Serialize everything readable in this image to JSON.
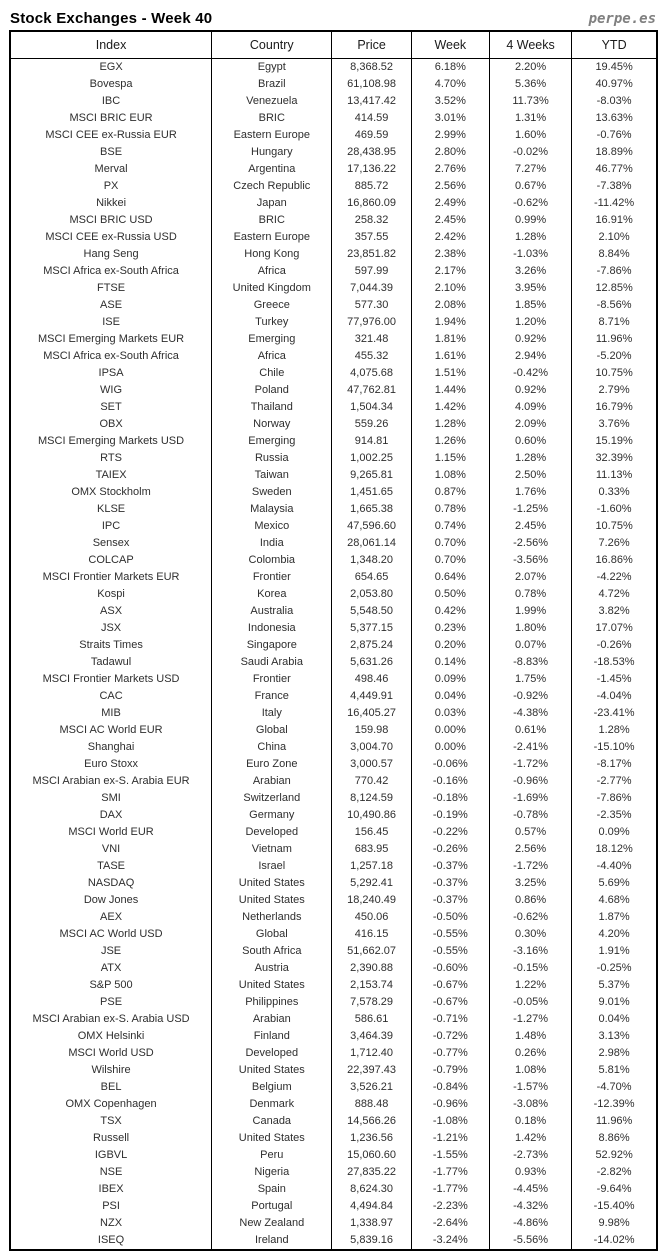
{
  "page": {
    "title": "Stock Exchanges - Week 40",
    "brand": "perpe.es"
  },
  "colors": {
    "positive": "#3aa152",
    "negative": "#ff3838"
  },
  "table": {
    "columns": [
      "Index",
      "Country",
      "Price",
      "Week",
      "4 Weeks",
      "YTD"
    ],
    "rows": [
      [
        "EGX",
        "Egypt",
        "8,368.52",
        "6.18%",
        "2.20%",
        "19.45%"
      ],
      [
        "Bovespa",
        "Brazil",
        "61,108.98",
        "4.70%",
        "5.36%",
        "40.97%"
      ],
      [
        "IBC",
        "Venezuela",
        "13,417.42",
        "3.52%",
        "11.73%",
        "-8.03%"
      ],
      [
        "MSCI BRIC EUR",
        "BRIC",
        "414.59",
        "3.01%",
        "1.31%",
        "13.63%"
      ],
      [
        "MSCI CEE ex-Russia EUR",
        "Eastern Europe",
        "469.59",
        "2.99%",
        "1.60%",
        "-0.76%"
      ],
      [
        "BSE",
        "Hungary",
        "28,438.95",
        "2.80%",
        "-0.02%",
        "18.89%"
      ],
      [
        "Merval",
        "Argentina",
        "17,136.22",
        "2.76%",
        "7.27%",
        "46.77%"
      ],
      [
        "PX",
        "Czech Republic",
        "885.72",
        "2.56%",
        "0.67%",
        "-7.38%"
      ],
      [
        "Nikkei",
        "Japan",
        "16,860.09",
        "2.49%",
        "-0.62%",
        "-11.42%"
      ],
      [
        "MSCI BRIC USD",
        "BRIC",
        "258.32",
        "2.45%",
        "0.99%",
        "16.91%"
      ],
      [
        "MSCI CEE ex-Russia USD",
        "Eastern Europe",
        "357.55",
        "2.42%",
        "1.28%",
        "2.10%"
      ],
      [
        "Hang Seng",
        "Hong Kong",
        "23,851.82",
        "2.38%",
        "-1.03%",
        "8.84%"
      ],
      [
        "MSCI Africa ex-South Africa",
        "Africa",
        "597.99",
        "2.17%",
        "3.26%",
        "-7.86%"
      ],
      [
        "FTSE",
        "United Kingdom",
        "7,044.39",
        "2.10%",
        "3.95%",
        "12.85%"
      ],
      [
        "ASE",
        "Greece",
        "577.30",
        "2.08%",
        "1.85%",
        "-8.56%"
      ],
      [
        "ISE",
        "Turkey",
        "77,976.00",
        "1.94%",
        "1.20%",
        "8.71%"
      ],
      [
        "MSCI Emerging Markets EUR",
        "Emerging",
        "321.48",
        "1.81%",
        "0.92%",
        "11.96%"
      ],
      [
        "MSCI Africa ex-South Africa",
        "Africa",
        "455.32",
        "1.61%",
        "2.94%",
        "-5.20%"
      ],
      [
        "IPSA",
        "Chile",
        "4,075.68",
        "1.51%",
        "-0.42%",
        "10.75%"
      ],
      [
        "WIG",
        "Poland",
        "47,762.81",
        "1.44%",
        "0.92%",
        "2.79%"
      ],
      [
        "SET",
        "Thailand",
        "1,504.34",
        "1.42%",
        "4.09%",
        "16.79%"
      ],
      [
        "OBX",
        "Norway",
        "559.26",
        "1.28%",
        "2.09%",
        "3.76%"
      ],
      [
        "MSCI Emerging Markets USD",
        "Emerging",
        "914.81",
        "1.26%",
        "0.60%",
        "15.19%"
      ],
      [
        "RTS",
        "Russia",
        "1,002.25",
        "1.15%",
        "1.28%",
        "32.39%"
      ],
      [
        "TAIEX",
        "Taiwan",
        "9,265.81",
        "1.08%",
        "2.50%",
        "11.13%"
      ],
      [
        "OMX Stockholm",
        "Sweden",
        "1,451.65",
        "0.87%",
        "1.76%",
        "0.33%"
      ],
      [
        "KLSE",
        "Malaysia",
        "1,665.38",
        "0.78%",
        "-1.25%",
        "-1.60%"
      ],
      [
        "IPC",
        "Mexico",
        "47,596.60",
        "0.74%",
        "2.45%",
        "10.75%"
      ],
      [
        "Sensex",
        "India",
        "28,061.14",
        "0.70%",
        "-2.56%",
        "7.26%"
      ],
      [
        "COLCAP",
        "Colombia",
        "1,348.20",
        "0.70%",
        "-3.56%",
        "16.86%"
      ],
      [
        "MSCI Frontier Markets EUR",
        "Frontier",
        "654.65",
        "0.64%",
        "2.07%",
        "-4.22%"
      ],
      [
        "Kospi",
        "Korea",
        "2,053.80",
        "0.50%",
        "0.78%",
        "4.72%"
      ],
      [
        "ASX",
        "Australia",
        "5,548.50",
        "0.42%",
        "1.99%",
        "3.82%"
      ],
      [
        "JSX",
        "Indonesia",
        "5,377.15",
        "0.23%",
        "1.80%",
        "17.07%"
      ],
      [
        "Straits Times",
        "Singapore",
        "2,875.24",
        "0.20%",
        "0.07%",
        "-0.26%"
      ],
      [
        "Tadawul",
        "Saudi Arabia",
        "5,631.26",
        "0.14%",
        "-8.83%",
        "-18.53%"
      ],
      [
        "MSCI Frontier Markets USD",
        "Frontier",
        "498.46",
        "0.09%",
        "1.75%",
        "-1.45%"
      ],
      [
        "CAC",
        "France",
        "4,449.91",
        "0.04%",
        "-0.92%",
        "-4.04%"
      ],
      [
        "MIB",
        "Italy",
        "16,405.27",
        "0.03%",
        "-4.38%",
        "-23.41%"
      ],
      [
        "MSCI AC World EUR",
        "Global",
        "159.98",
        "0.00%",
        "0.61%",
        "1.28%"
      ],
      [
        "Shanghai",
        "China",
        "3,004.70",
        "0.00%",
        "-2.41%",
        "-15.10%"
      ],
      [
        "Euro Stoxx",
        "Euro Zone",
        "3,000.57",
        "-0.06%",
        "-1.72%",
        "-8.17%"
      ],
      [
        "MSCI Arabian ex-S. Arabia EUR",
        "Arabian",
        "770.42",
        "-0.16%",
        "-0.96%",
        "-2.77%"
      ],
      [
        "SMI",
        "Switzerland",
        "8,124.59",
        "-0.18%",
        "-1.69%",
        "-7.86%"
      ],
      [
        "DAX",
        "Germany",
        "10,490.86",
        "-0.19%",
        "-0.78%",
        "-2.35%"
      ],
      [
        "MSCI World EUR",
        "Developed",
        "156.45",
        "-0.22%",
        "0.57%",
        "0.09%"
      ],
      [
        "VNI",
        "Vietnam",
        "683.95",
        "-0.26%",
        "2.56%",
        "18.12%"
      ],
      [
        "TASE",
        "Israel",
        "1,257.18",
        "-0.37%",
        "-1.72%",
        "-4.40%"
      ],
      [
        "NASDAQ",
        "United States",
        "5,292.41",
        "-0.37%",
        "3.25%",
        "5.69%"
      ],
      [
        "Dow Jones",
        "United States",
        "18,240.49",
        "-0.37%",
        "0.86%",
        "4.68%"
      ],
      [
        "AEX",
        "Netherlands",
        "450.06",
        "-0.50%",
        "-0.62%",
        "1.87%"
      ],
      [
        "MSCI AC World USD",
        "Global",
        "416.15",
        "-0.55%",
        "0.30%",
        "4.20%"
      ],
      [
        "JSE",
        "South Africa",
        "51,662.07",
        "-0.55%",
        "-3.16%",
        "1.91%"
      ],
      [
        "ATX",
        "Austria",
        "2,390.88",
        "-0.60%",
        "-0.15%",
        "-0.25%"
      ],
      [
        "S&P 500",
        "United States",
        "2,153.74",
        "-0.67%",
        "1.22%",
        "5.37%"
      ],
      [
        "PSE",
        "Philippines",
        "7,578.29",
        "-0.67%",
        "-0.05%",
        "9.01%"
      ],
      [
        "MSCI Arabian ex-S. Arabia USD",
        "Arabian",
        "586.61",
        "-0.71%",
        "-1.27%",
        "0.04%"
      ],
      [
        "OMX Helsinki",
        "Finland",
        "3,464.39",
        "-0.72%",
        "1.48%",
        "3.13%"
      ],
      [
        "MSCI World USD",
        "Developed",
        "1,712.40",
        "-0.77%",
        "0.26%",
        "2.98%"
      ],
      [
        "Wilshire",
        "United States",
        "22,397.43",
        "-0.79%",
        "1.08%",
        "5.81%"
      ],
      [
        "BEL",
        "Belgium",
        "3,526.21",
        "-0.84%",
        "-1.57%",
        "-4.70%"
      ],
      [
        "OMX Copenhagen",
        "Denmark",
        "888.48",
        "-0.96%",
        "-3.08%",
        "-12.39%"
      ],
      [
        "TSX",
        "Canada",
        "14,566.26",
        "-1.08%",
        "0.18%",
        "11.96%"
      ],
      [
        "Russell",
        "United States",
        "1,236.56",
        "-1.21%",
        "1.42%",
        "8.86%"
      ],
      [
        "IGBVL",
        "Peru",
        "15,060.60",
        "-1.55%",
        "-2.73%",
        "52.92%"
      ],
      [
        "NSE",
        "Nigeria",
        "27,835.22",
        "-1.77%",
        "0.93%",
        "-2.82%"
      ],
      [
        "IBEX",
        "Spain",
        "8,624.30",
        "-1.77%",
        "-4.45%",
        "-9.64%"
      ],
      [
        "PSI",
        "Portugal",
        "4,494.84",
        "-2.23%",
        "-4.32%",
        "-15.40%"
      ],
      [
        "NZX",
        "New Zealand",
        "1,338.97",
        "-2.64%",
        "-4.86%",
        "9.98%"
      ],
      [
        "ISEQ",
        "Ireland",
        "5,839.16",
        "-3.24%",
        "-5.56%",
        "-14.02%"
      ]
    ]
  }
}
